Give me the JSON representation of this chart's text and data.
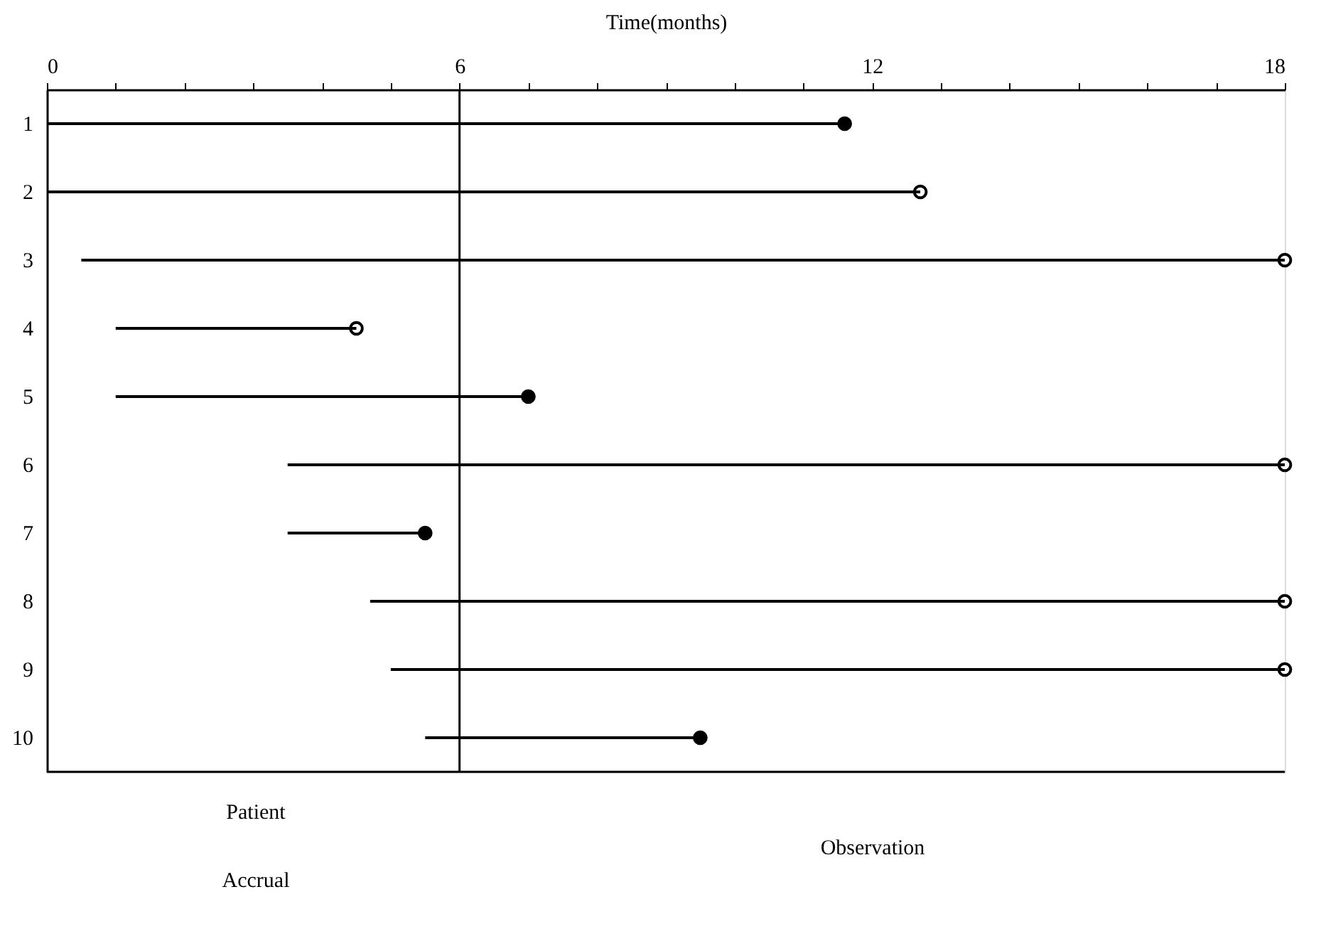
{
  "chart_data": {
    "type": "bar",
    "orientation": "horizontal",
    "xlabel": "Time(months)",
    "categories": [
      "1",
      "2",
      "3",
      "4",
      "5",
      "6",
      "7",
      "8",
      "9",
      "10"
    ],
    "series": [
      {
        "color": "#000000",
        "base": [
          0,
          0,
          0.5,
          1,
          1,
          3.5,
          3.5,
          4.7,
          5,
          5.5
        ],
        "values": [
          11.6,
          12.7,
          17.5,
          3.5,
          6.0,
          14.5,
          2.0,
          13.3,
          13.0,
          4.0
        ]
      },
      {
        "type": "scatter",
        "marker": "circle",
        "color": "#000000",
        "values": [
          11.6,
          null,
          null,
          null,
          7.0,
          null,
          5.5,
          null,
          null,
          9.5
        ]
      },
      {
        "type": "scatter",
        "marker": "circle",
        "color": "#ffffff",
        "values": [
          null,
          12.7,
          18,
          4.5,
          null,
          18,
          null,
          18,
          18,
          null
        ]
      }
    ],
    "xlim": [
      0,
      18
    ],
    "xticks": [
      0,
      {
        "value": 1,
        "label": null
      },
      {
        "value": 2,
        "label": null
      },
      {
        "value": 3,
        "label": null
      },
      {
        "value": 4,
        "label": null
      },
      {
        "value": 5,
        "label": null
      },
      6,
      {
        "value": 7,
        "label": null
      },
      {
        "value": 8,
        "label": null
      },
      {
        "value": 9,
        "label": null
      },
      {
        "value": 10,
        "label": null
      },
      {
        "value": 11,
        "label": null
      },
      12,
      {
        "value": 13,
        "label": null
      },
      {
        "value": 14,
        "label": null
      },
      {
        "value": 15,
        "label": null
      },
      {
        "value": 16,
        "label": null
      },
      {
        "value": 17,
        "label": null
      },
      18
    ],
    "ref_lines": [
      {
        "axis": "x",
        "value": 6,
        "color": "#000000"
      }
    ],
    "annotations": [
      "Patient",
      "Accrual",
      "Observation"
    ],
    "grid": false
  }
}
